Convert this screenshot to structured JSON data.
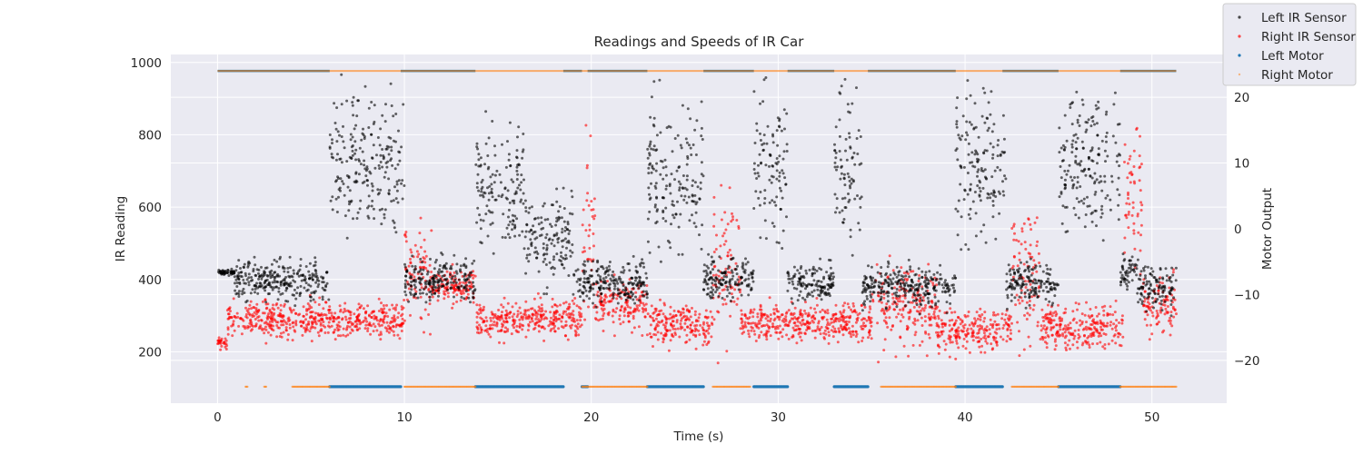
{
  "chart_data": {
    "type": "scatter",
    "title": "Readings and Speeds of IR Car",
    "xlabel": "Time (s)",
    "ylabel": "IR Reading",
    "y2label": "Motor Output",
    "xlim": [
      -2.5,
      54
    ],
    "ylim": [
      58,
      1022
    ],
    "y2lim": [
      -26.5,
      26.5
    ],
    "xticks": [
      0,
      10,
      20,
      30,
      40,
      50
    ],
    "yticks": [
      200,
      400,
      600,
      800,
      1000
    ],
    "y2ticks": [
      -20,
      -10,
      0,
      10,
      20
    ],
    "grid": true,
    "legend_position": "top-right",
    "colors": {
      "background": "#eaeaf2",
      "grid": "#ffffff",
      "left_ir": "#000000",
      "right_ir": "#ff0000",
      "left_motor": "#1f77b4",
      "right_motor": "#ff7f0e"
    },
    "series": [
      {
        "name": "Left IR Sensor",
        "axis": "left",
        "color": "#000000",
        "note": "dense noisy scatter; x,y are [t, mean, spread] segments",
        "segments": [
          [
            0,
            0.9,
            420,
            8
          ],
          [
            0.9,
            6,
            400,
            55
          ],
          [
            6,
            10,
            720,
            180
          ],
          [
            10,
            13.8,
            400,
            55
          ],
          [
            13.8,
            16.4,
            650,
            170
          ],
          [
            16.4,
            19,
            520,
            110
          ],
          [
            19,
            23,
            390,
            55
          ],
          [
            23,
            26,
            680,
            200
          ],
          [
            26,
            28.7,
            400,
            55
          ],
          [
            28.7,
            30.5,
            720,
            180
          ],
          [
            30.5,
            33,
            390,
            55
          ],
          [
            33,
            34.5,
            700,
            200
          ],
          [
            34.5,
            39.5,
            380,
            55
          ],
          [
            39.5,
            42.2,
            720,
            190
          ],
          [
            42.2,
            45,
            390,
            55
          ],
          [
            45,
            48.3,
            720,
            180
          ],
          [
            48.3,
            49.2,
            420,
            50
          ],
          [
            49.2,
            51.3,
            380,
            60
          ]
        ]
      },
      {
        "name": "Right IR Sensor",
        "axis": "left",
        "color": "#ff0000",
        "segments": [
          [
            0,
            0.5,
            220,
            25
          ],
          [
            0.5,
            10,
            290,
            50
          ],
          [
            10,
            11.5,
            420,
            130
          ],
          [
            11.5,
            13.8,
            380,
            45
          ],
          [
            13.8,
            19.5,
            290,
            50
          ],
          [
            19.5,
            20.2,
            560,
            230
          ],
          [
            20.2,
            23,
            330,
            60
          ],
          [
            23,
            26.5,
            280,
            55
          ],
          [
            26.5,
            28,
            420,
            170
          ],
          [
            28,
            35,
            280,
            50
          ],
          [
            35,
            38.5,
            330,
            110
          ],
          [
            38.5,
            42.5,
            260,
            55
          ],
          [
            42.5,
            44,
            420,
            170
          ],
          [
            44,
            48.5,
            270,
            55
          ],
          [
            48.5,
            49.5,
            600,
            200
          ],
          [
            49.5,
            51.3,
            320,
            80
          ]
        ]
      },
      {
        "name": "Left Motor",
        "axis": "right",
        "color": "#1f77b4",
        "top_value": 24,
        "bottom_value": -24,
        "bottom_intervals": [
          [
            6,
            9.8
          ],
          [
            13.8,
            18.5
          ],
          [
            19.5,
            19.8
          ],
          [
            23,
            26
          ],
          [
            28.7,
            30.5
          ],
          [
            33,
            34.8
          ],
          [
            39.5,
            42
          ],
          [
            45,
            48.3
          ]
        ],
        "top_intervals": [
          [
            0,
            6
          ],
          [
            9.8,
            13.8
          ],
          [
            18.5,
            19.5
          ],
          [
            19.8,
            23
          ],
          [
            26,
            28.7
          ],
          [
            30.5,
            33
          ],
          [
            34.8,
            39.5
          ],
          [
            42,
            45
          ],
          [
            48.3,
            51.3
          ]
        ]
      },
      {
        "name": "Right Motor",
        "axis": "right",
        "color": "#ff7f0e",
        "top_value": 24,
        "bottom_value": -24,
        "bottom_intervals": [
          [
            1.5,
            1.6
          ],
          [
            2.5,
            2.6
          ],
          [
            4,
            6
          ],
          [
            10,
            13.8
          ],
          [
            19.5,
            23
          ],
          [
            26.5,
            28.5
          ],
          [
            35.5,
            39.5
          ],
          [
            42.5,
            45
          ],
          [
            48.3,
            51.3
          ]
        ],
        "top_intervals": [
          [
            0,
            51.3
          ]
        ]
      }
    ]
  }
}
